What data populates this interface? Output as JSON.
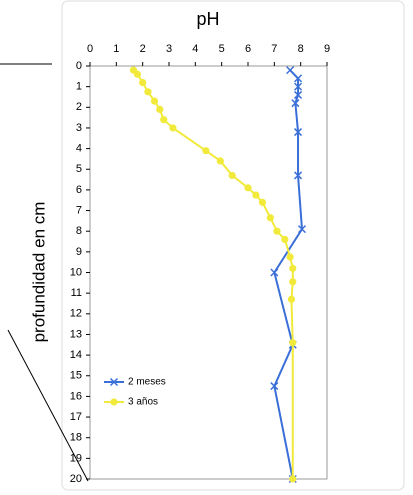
{
  "chart_data": {
    "type": "line",
    "title": "pH",
    "ylabel": "profundidad en cm",
    "xlim": [
      0,
      9
    ],
    "xticks": [
      0,
      1,
      2,
      3,
      4,
      5,
      6,
      7,
      8,
      9
    ],
    "ylim": [
      0,
      20
    ],
    "yticks": [
      0,
      1,
      2,
      3,
      4,
      5,
      6,
      7,
      8,
      9,
      10,
      11,
      12,
      13,
      14,
      15,
      16,
      17,
      18,
      19,
      20
    ],
    "y_inverted": true,
    "legend": "lower left",
    "series": [
      {
        "name": "2 meses",
        "color": "#3b6fd8",
        "marker": "x",
        "x": [
          7.6,
          7.9,
          7.9,
          7.9,
          7.8,
          7.9,
          7.9,
          8.05,
          7.0,
          7.7,
          7.0,
          7.7
        ],
        "y": [
          0.2,
          0.6,
          1.0,
          1.4,
          1.8,
          3.2,
          5.3,
          7.9,
          10.0,
          13.5,
          15.5,
          20
        ]
      },
      {
        "name": "3 años",
        "color": "#f2ea3a",
        "marker": "o",
        "x": [
          1.65,
          1.8,
          2.0,
          2.2,
          2.45,
          2.65,
          2.8,
          3.15,
          4.4,
          4.95,
          5.4,
          6.0,
          6.3,
          6.55,
          6.85,
          7.1,
          7.4,
          7.6,
          7.7,
          7.7,
          7.65,
          7.7,
          7.7
        ],
        "y": [
          0.2,
          0.4,
          0.8,
          1.25,
          1.7,
          2.1,
          2.6,
          3.0,
          4.1,
          4.6,
          5.3,
          5.9,
          6.25,
          6.6,
          7.35,
          8.0,
          8.4,
          9.25,
          9.8,
          10.45,
          11.3,
          13.4,
          20
        ]
      }
    ]
  }
}
